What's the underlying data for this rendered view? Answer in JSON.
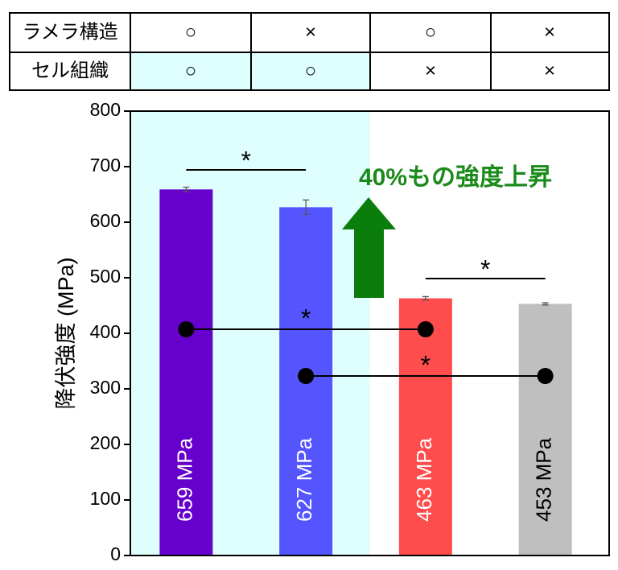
{
  "table": {
    "rows": [
      [
        "ラメラ構造",
        "○",
        "×",
        "○",
        "×"
      ],
      [
        "セル組織",
        "○",
        "○",
        "×",
        "×"
      ]
    ]
  },
  "chart_data": {
    "type": "bar",
    "y_label": "降伏強度 (MPa)",
    "categories": [
      null,
      null,
      null,
      null
    ],
    "values": [
      659,
      627,
      463,
      453
    ],
    "errors": [
      4,
      13,
      3,
      2
    ],
    "value_labels": [
      "659 MPa",
      "627 MPa",
      "463 MPa",
      "453 MPa"
    ],
    "value_label_colors": [
      "#ffffff",
      "#ffffff",
      "#ffffff",
      "#000000"
    ],
    "colors": [
      "#6600cc",
      "#5555ff",
      "#ff4d4d",
      "#bfbfbf"
    ],
    "ylim": [
      0,
      800
    ],
    "yticks": [
      0,
      100,
      200,
      300,
      400,
      500,
      600,
      700,
      800
    ],
    "annotation": "40%もの強度上昇",
    "significance": [
      "*",
      "*",
      "*",
      "*"
    ]
  }
}
